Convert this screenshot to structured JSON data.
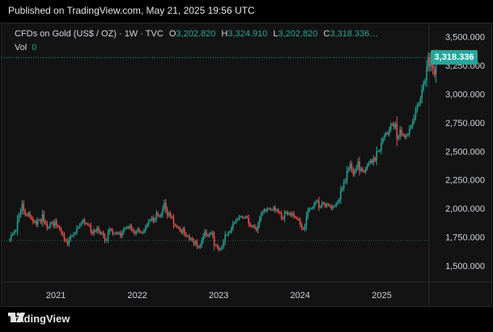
{
  "header": {
    "published": "Published on TradingView.com, May 21, 2025 19:56 UTC"
  },
  "legend": {
    "symbol": "CFDs on Gold (US$ / OZ) · 1W · TVC",
    "open_label": "O",
    "open_value": "3,202.820",
    "high_label": "H",
    "high_value": "3,324.910",
    "low_label": "L",
    "low_value": "3,202.820",
    "close_label": "C",
    "close_value": "3,318.336…",
    "vol_label": "Vol",
    "vol_value": "0"
  },
  "last_price_label": "3,318.336",
  "footer": {
    "brand": "TradingView"
  },
  "colors": {
    "up": "#26a69a",
    "down": "#ef5350",
    "background": "#131313",
    "grid": "#1e1e1e",
    "text": "#d1d4dc"
  },
  "chart_data": {
    "type": "candlestick",
    "title": "CFDs on Gold (US$ / OZ)",
    "interval": "1W",
    "source": "TVC",
    "x_ticks": [
      "2021",
      "2022",
      "2023",
      "2024",
      "2025"
    ],
    "y_ticks": [
      "1,500.000",
      "1,750.000",
      "2,000.000",
      "2,250.000",
      "2,500.000",
      "2,750.000",
      "3,000.000",
      "3,250.000",
      "3,500.000"
    ],
    "ylim": [
      1430,
      3560
    ],
    "xlim": [
      "2020-06-01",
      "2025-07-10"
    ],
    "last_price": 3318.336,
    "reference_low": 1720,
    "grid": false,
    "series": [
      {
        "x_start": "2020-06-08",
        "interval_days": 7,
        "closes": [
          1730,
          1770,
          1780,
          1800,
          1810,
          1900,
          1940,
          1980,
          2040,
          1980,
          1950,
          1940,
          1960,
          1930,
          1910,
          1880,
          1890,
          1860,
          1900,
          1900,
          1880,
          1950,
          1890,
          1870,
          1830,
          1840,
          1870,
          1880,
          1850,
          1890,
          1850,
          1840,
          1820,
          1790,
          1770,
          1730,
          1720,
          1690,
          1730,
          1760,
          1760,
          1780,
          1790,
          1830,
          1840,
          1860,
          1880,
          1900,
          1870,
          1870,
          1860,
          1850,
          1800,
          1780,
          1810,
          1800,
          1830,
          1800,
          1780,
          1790,
          1760,
          1720,
          1730,
          1790,
          1820,
          1810,
          1780,
          1780,
          1790,
          1780,
          1790,
          1760,
          1790,
          1820,
          1830,
          1840,
          1830,
          1850,
          1820,
          1800,
          1780,
          1800,
          1820,
          1800,
          1790,
          1790,
          1810,
          1840,
          1860,
          1890,
          1900,
          1920,
          1890,
          1910,
          1960,
          1940,
          1930,
          1950,
          2000,
          2050,
          1990,
          1940,
          1960,
          1930,
          1920,
          1860,
          1850,
          1840,
          1830,
          1810,
          1790,
          1820,
          1780,
          1760,
          1760,
          1730,
          1740,
          1720,
          1690,
          1710,
          1670,
          1660,
          1680,
          1720,
          1760,
          1800,
          1770,
          1760,
          1780,
          1790,
          1760,
          1680,
          1680,
          1660,
          1640,
          1650,
          1670,
          1710,
          1770,
          1770,
          1790,
          1800,
          1830,
          1870,
          1880,
          1900,
          1910,
          1930,
          1930,
          1920,
          1920,
          1930,
          1920,
          1870,
          1850,
          1840,
          1850,
          1830,
          1810,
          1860,
          1910,
          1950,
          1970,
          1990,
          1980,
          2000,
          2000,
          1990,
          1990,
          2010,
          1980,
          1990,
          1970,
          1960,
          1920,
          1910,
          1960,
          1970,
          1950,
          1960,
          1940,
          1960,
          1930,
          1920,
          1910,
          1900,
          1860,
          1830,
          1820,
          1850,
          1930,
          1980,
          2000,
          2000,
          2010,
          2040,
          2060,
          2070,
          2010,
          2020,
          2050,
          2040,
          2020,
          2040,
          2030,
          2020,
          2000,
          2020,
          2020,
          2040,
          2060,
          2080,
          2160,
          2180,
          2230,
          2250,
          2330,
          2350,
          2390,
          2340,
          2300,
          2330,
          2360,
          2410,
          2330,
          2350,
          2330,
          2320,
          2350,
          2380,
          2400,
          2420,
          2400,
          2440,
          2420,
          2500,
          2500,
          2510,
          2580,
          2610,
          2640,
          2660,
          2650,
          2690,
          2730,
          2740,
          2710,
          2740,
          2610,
          2630,
          2690,
          2650,
          2640,
          2620,
          2640,
          2650,
          2700,
          2720,
          2760,
          2800,
          2860,
          2900,
          2920,
          2960,
          3040,
          3090,
          3120,
          3240,
          3320,
          3240,
          3320,
          3220,
          3170,
          3318
        ]
      }
    ]
  }
}
